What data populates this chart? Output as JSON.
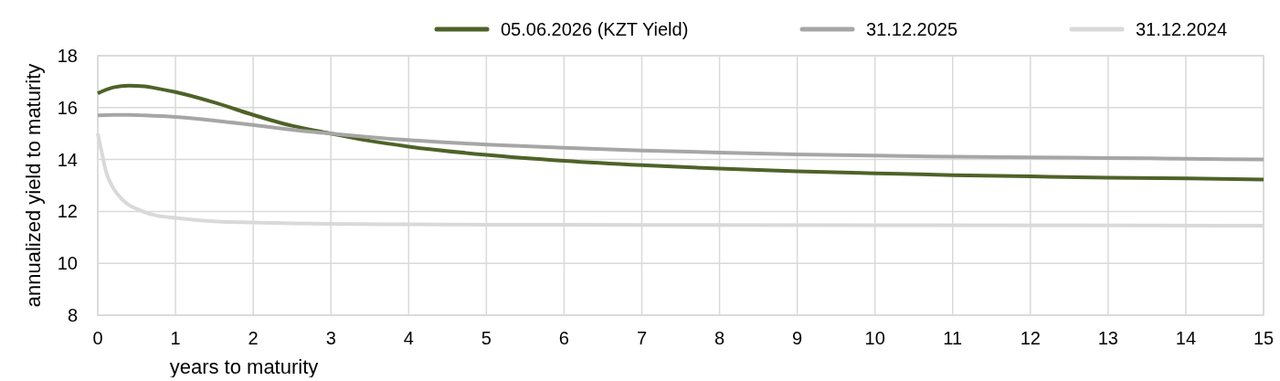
{
  "chart_data": {
    "type": "line",
    "xlabel": "years to maturity",
    "ylabel": "annualized yield to maturity",
    "xlim": [
      0,
      15
    ],
    "xticks": [
      0,
      1,
      2,
      3,
      4,
      5,
      6,
      7,
      8,
      9,
      10,
      11,
      12,
      13,
      14,
      15
    ],
    "ylim": [
      8,
      18
    ],
    "yticks": [
      8,
      10,
      12,
      14,
      16,
      18
    ],
    "grid": true,
    "legend": "top",
    "marker": "none",
    "line_style": "solid",
    "series": [
      {
        "name": "05.06.2026 (KZT Yield)",
        "color": "#4f6228",
        "x": [
          0,
          0.2,
          0.4,
          0.6,
          0.8,
          1,
          1.5,
          2,
          2.5,
          3,
          3.5,
          4,
          5,
          6,
          7,
          8,
          9,
          10,
          11,
          12,
          13,
          14,
          15
        ],
        "values": [
          16.55,
          16.78,
          16.85,
          16.82,
          16.72,
          16.6,
          16.2,
          15.72,
          15.3,
          15.0,
          14.72,
          14.5,
          14.18,
          13.95,
          13.78,
          13.65,
          13.55,
          13.47,
          13.4,
          13.35,
          13.3,
          13.27,
          13.23
        ]
      },
      {
        "name": "31.12.2025",
        "color": "#a6a6a6",
        "x": [
          0,
          0.2,
          0.4,
          0.6,
          1,
          1.5,
          2,
          2.5,
          3,
          4,
          5,
          6,
          7,
          8,
          9,
          10,
          11,
          12,
          13,
          14,
          15
        ],
        "values": [
          15.7,
          15.72,
          15.72,
          15.7,
          15.64,
          15.5,
          15.33,
          15.15,
          15.0,
          14.75,
          14.58,
          14.45,
          14.35,
          14.27,
          14.2,
          14.15,
          14.11,
          14.08,
          14.06,
          14.03,
          14.0
        ]
      },
      {
        "name": "31.12.2024",
        "color": "#d9d9d9",
        "x": [
          0,
          0.05,
          0.1,
          0.2,
          0.3,
          0.4,
          0.5,
          0.7,
          1,
          1.5,
          2,
          3,
          4,
          5,
          7,
          10,
          15
        ],
        "values": [
          15.0,
          14.3,
          13.6,
          12.9,
          12.5,
          12.25,
          12.1,
          11.88,
          11.75,
          11.62,
          11.57,
          11.52,
          11.5,
          11.49,
          11.48,
          11.47,
          11.45
        ]
      }
    ]
  }
}
